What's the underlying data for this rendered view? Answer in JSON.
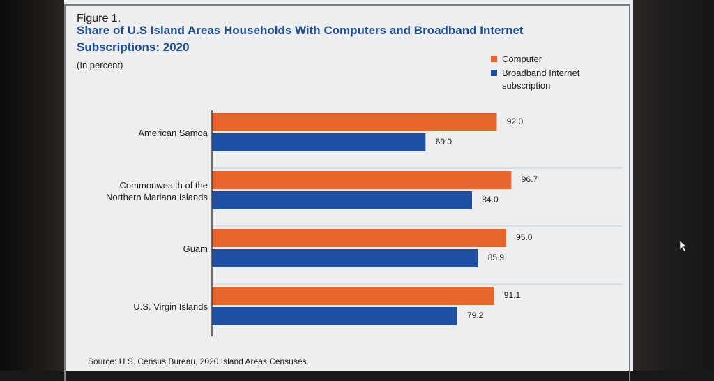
{
  "figure_label": "Figure 1.",
  "source": "Source: U.S. Census Bureau, 2020 Island Areas Censuses.",
  "chart_data": {
    "type": "bar",
    "orientation": "horizontal",
    "title": "Share of U.S Island Areas Households With Computers and Broadband Internet Subscriptions: 2020",
    "subtitle": "(In percent)",
    "categories": [
      [
        "American Samoa"
      ],
      [
        "Commonwealth of the",
        "Northern Mariana Islands"
      ],
      [
        "Guam"
      ],
      [
        "U.S. Virgin Islands"
      ]
    ],
    "series": [
      {
        "name": "Computer",
        "color": "#e8662e",
        "values": [
          92.0,
          96.7,
          95.0,
          91.1
        ],
        "labels": [
          "92.0",
          "96.7",
          "95.0",
          "91.1"
        ]
      },
      {
        "name": "Broadband Internet subscription",
        "color": "#1e4fa3",
        "values": [
          69.0,
          84.0,
          85.9,
          79.2
        ],
        "labels": [
          "69.0",
          "84.0",
          "85.9",
          "79.2"
        ]
      }
    ],
    "xlim": [
      0,
      100
    ],
    "legend_position": "top-right",
    "grid": "horizontal separators between categories"
  }
}
